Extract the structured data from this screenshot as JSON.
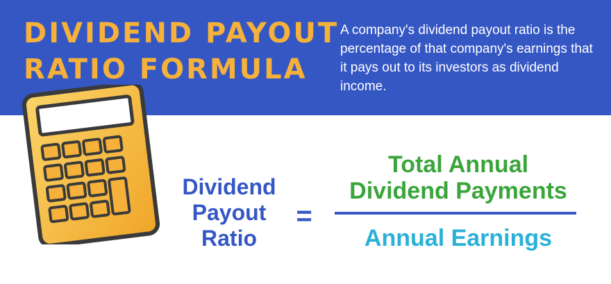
{
  "title": {
    "line1": "DIVIDEND PAYOUT",
    "line2": "RATIO FORMULA"
  },
  "description": "A company's dividend payout ratio is the percentage of that company's earnings that it pays out to its investors as dividend income.",
  "formula": {
    "lhs": [
      "Dividend",
      "Payout",
      "Ratio"
    ],
    "equals": "=",
    "numerator": [
      "Total Annual",
      "Dividend Payments"
    ],
    "denominator": "Annual Earnings"
  },
  "colors": {
    "banner": "#3557c4",
    "title": "#f6b13b",
    "lhs": "#3557c4",
    "numerator": "#3aa53a",
    "denominator": "#2bb1d8",
    "calculator_body": "#f5b13a",
    "calculator_outline": "#3a3a3a"
  },
  "icons": {
    "calculator": "calculator-icon"
  }
}
